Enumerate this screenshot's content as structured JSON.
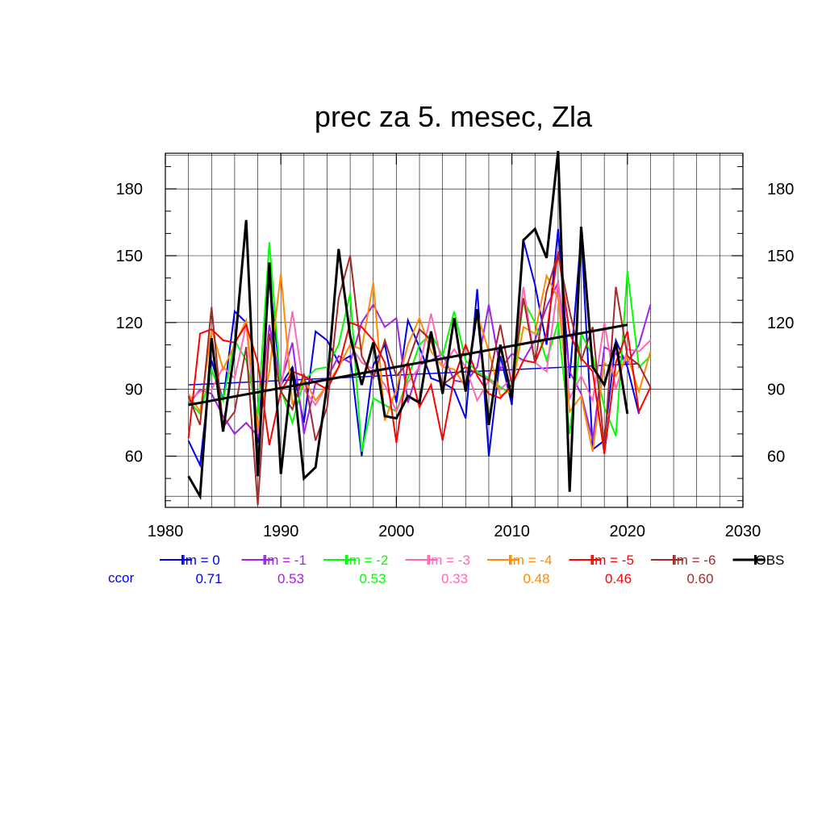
{
  "chart_data": {
    "type": "line",
    "title": "prec za 5. mesec, Zla",
    "xlabel": "",
    "ylabel": "",
    "xlim": [
      1980,
      2030
    ],
    "ylim": [
      37,
      196
    ],
    "xticks": [
      1980,
      1990,
      2000,
      2010,
      2020,
      2030
    ],
    "yticks": [
      60,
      90,
      120,
      150,
      180
    ],
    "grid": true,
    "legend_position": "bottom",
    "ccor_label": "ccor",
    "x": [
      1982,
      1983,
      1984,
      1985,
      1986,
      1987,
      1988,
      1989,
      1990,
      1991,
      1992,
      1993,
      1994,
      1995,
      1996,
      1997,
      1998,
      1999,
      2000,
      2001,
      2002,
      2003,
      2004,
      2005,
      2006,
      2007,
      2008,
      2009,
      2010,
      2011,
      2012,
      2013,
      2014,
      2015,
      2016,
      2017,
      2018,
      2019,
      2020,
      2021,
      2022
    ],
    "series": [
      {
        "name": "lm = 0",
        "ccor": "0.71",
        "color": "#0000ee",
        "values": [
          67,
          56,
          103,
          85,
          125,
          120,
          66,
          140,
          92,
          100,
          75,
          116,
          112,
          102,
          105,
          60,
          101,
          110,
          84,
          121,
          109,
          95,
          93,
          90,
          77,
          135,
          60,
          105,
          83,
          157,
          137,
          110,
          162,
          95,
          160,
          63,
          67,
          112,
          100,
          79,
          null
        ],
        "trend": [
          [
            1982,
            92
          ],
          [
            2021,
            101.5
          ]
        ]
      },
      {
        "name": "lm = -1",
        "ccor": "0.53",
        "color": "#a020f0",
        "values": [
          83,
          90,
          88,
          78,
          70,
          75,
          69,
          119,
          93,
          111,
          70,
          93,
          95,
          105,
          102,
          120,
          128,
          118,
          122,
          84,
          101,
          103,
          106,
          94,
          93,
          100,
          128,
          99,
          106,
          103,
          112,
          127,
          138,
          98,
          88,
          67,
          109,
          106,
          102,
          110,
          128
        ],
        "trend": null
      },
      {
        "name": "lm = -2",
        "ccor": "0.53",
        "color": "#00ff00",
        "values": [
          85,
          79,
          99,
          85,
          112,
          103,
          78,
          156,
          90,
          75,
          94,
          99,
          100,
          110,
          133,
          62,
          86,
          83,
          80,
          95,
          110,
          115,
          105,
          125,
          103,
          98,
          95,
          91,
          88,
          130,
          120,
          103,
          120,
          70,
          115,
          105,
          82,
          69,
          143,
          100,
          105
        ],
        "trend": null
      },
      {
        "name": "lm = -3",
        "ccor": "0.33",
        "color": "#ff69b4",
        "values": [
          85,
          89,
          90,
          100,
          95,
          119,
          70,
          115,
          90,
          125,
          90,
          83,
          92,
          100,
          110,
          102,
          99,
          92,
          80,
          93,
          100,
          124,
          100,
          108,
          100,
          85,
          94,
          90,
          95,
          136,
          102,
          98,
          138,
          86,
          96,
          85,
          120,
          90,
          108,
          107,
          112
        ],
        "trend": null
      },
      {
        "name": "lm = -4",
        "ccor": "0.48",
        "color": "#ff8c00",
        "values": [
          88,
          80,
          117,
          99,
          110,
          121,
          73,
          98,
          142,
          83,
          95,
          85,
          92,
          100,
          110,
          108,
          138,
          76,
          90,
          110,
          122,
          107,
          100,
          99,
          91,
          124,
          107,
          87,
          90,
          118,
          115,
          141,
          131,
          80,
          87,
          62,
          102,
          96,
          105,
          89,
          107
        ],
        "trend": null
      },
      {
        "name": "lm = -5",
        "ccor": "0.46",
        "color": "#ff0000",
        "values": [
          68,
          115,
          117,
          112,
          111,
          119,
          102,
          65,
          89,
          98,
          96,
          93,
          90,
          100,
          120,
          118,
          112,
          102,
          66,
          102,
          82,
          92,
          67,
          95,
          110,
          96,
          88,
          86,
          92,
          103,
          102,
          115,
          152,
          115,
          104,
          98,
          61,
          102,
          116,
          80,
          91
        ],
        "trend": null
      },
      {
        "name": "lm = -6",
        "ccor": "0.60",
        "color": "#a52a2a",
        "values": [
          87,
          74,
          127,
          73,
          80,
          109,
          38,
          115,
          89,
          81,
          97,
          67,
          82,
          131,
          150,
          105,
          95,
          112,
          96,
          102,
          117,
          112,
          92,
          96,
          100,
          97,
          94,
          119,
          92,
          131,
          102,
          134,
          151,
          125,
          103,
          118,
          64,
          136,
          105,
          101,
          91
        ],
        "trend": null
      },
      {
        "name": "OBS",
        "ccor": "",
        "color": "#000000",
        "values": [
          51,
          42,
          113,
          71,
          108,
          166,
          51,
          147,
          52,
          100,
          50,
          55,
          92,
          153,
          114,
          92,
          111,
          78,
          77,
          87,
          84,
          116,
          88,
          122,
          89,
          126,
          74,
          110,
          86,
          157,
          162,
          149,
          197,
          44,
          163,
          100,
          92,
          111,
          79,
          null,
          null
        ],
        "trend": [
          [
            1982,
            83
          ],
          [
            2020,
            119
          ]
        ]
      }
    ]
  }
}
